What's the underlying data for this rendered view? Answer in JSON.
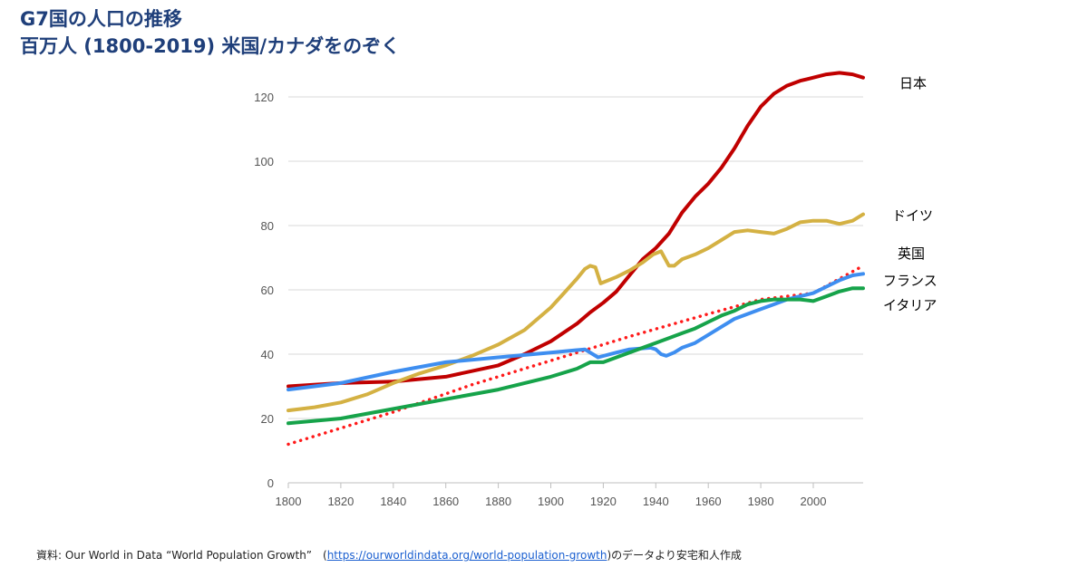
{
  "title": {
    "line1": "G7国の人口の推移",
    "line2": "百万人 (1800-2019) 米国/カナダをのぞく"
  },
  "source": {
    "prefix": "資料: Our World in Data “World Population Growth”　(",
    "link_text": "https://ourworldindata.org/world-population-growth",
    "suffix": ")のデータより安宅和人作成"
  },
  "chart_data": {
    "type": "line",
    "title": "G7国の人口の推移",
    "subtitle": "百万人 (1800-2019) 米国/カナダをのぞく",
    "xlabel": "",
    "ylabel": "",
    "xlim": [
      1800,
      2019
    ],
    "ylim": [
      0,
      120
    ],
    "x_ticks": [
      1800,
      1820,
      1840,
      1860,
      1880,
      1900,
      1920,
      1940,
      1960,
      1980,
      2000
    ],
    "y_ticks": [
      0,
      20,
      40,
      60,
      80,
      100,
      120
    ],
    "grid": "horizontal",
    "legend": "right-end labels",
    "series": [
      {
        "name": "日本",
        "color": "#c00000",
        "points": [
          [
            1800,
            30
          ],
          [
            1820,
            31
          ],
          [
            1840,
            31.5
          ],
          [
            1860,
            33
          ],
          [
            1880,
            36.5
          ],
          [
            1890,
            40
          ],
          [
            1900,
            44
          ],
          [
            1910,
            49.5
          ],
          [
            1915,
            53
          ],
          [
            1920,
            56
          ],
          [
            1925,
            59.5
          ],
          [
            1930,
            64.5
          ],
          [
            1935,
            69.5
          ],
          [
            1940,
            73
          ],
          [
            1945,
            77.5
          ],
          [
            1950,
            84
          ],
          [
            1955,
            89
          ],
          [
            1960,
            93
          ],
          [
            1965,
            98
          ],
          [
            1970,
            104
          ],
          [
            1975,
            111
          ],
          [
            1980,
            117
          ],
          [
            1985,
            121
          ],
          [
            1990,
            123.5
          ],
          [
            1995,
            125
          ],
          [
            2000,
            126
          ],
          [
            2005,
            127
          ],
          [
            2010,
            127.5
          ],
          [
            2015,
            127
          ],
          [
            2019,
            126
          ]
        ]
      },
      {
        "name": "ドイツ",
        "color": "#d4b143",
        "points": [
          [
            1800,
            22.5
          ],
          [
            1810,
            23.5
          ],
          [
            1820,
            25
          ],
          [
            1830,
            27.5
          ],
          [
            1840,
            31
          ],
          [
            1850,
            34
          ],
          [
            1860,
            36.5
          ],
          [
            1870,
            39.5
          ],
          [
            1880,
            43
          ],
          [
            1890,
            47.5
          ],
          [
            1900,
            54.5
          ],
          [
            1905,
            59
          ],
          [
            1910,
            63.5
          ],
          [
            1913,
            66.5
          ],
          [
            1915,
            67.5
          ],
          [
            1917,
            67
          ],
          [
            1919,
            62
          ],
          [
            1925,
            64
          ],
          [
            1930,
            66
          ],
          [
            1935,
            68.5
          ],
          [
            1939,
            71
          ],
          [
            1942,
            72
          ],
          [
            1945,
            67.5
          ],
          [
            1947,
            67.5
          ],
          [
            1950,
            69.5
          ],
          [
            1955,
            71
          ],
          [
            1960,
            73
          ],
          [
            1965,
            75.5
          ],
          [
            1970,
            78
          ],
          [
            1975,
            78.5
          ],
          [
            1980,
            78
          ],
          [
            1985,
            77.5
          ],
          [
            1990,
            79
          ],
          [
            1995,
            81
          ],
          [
            2000,
            81.5
          ],
          [
            2005,
            81.5
          ],
          [
            2010,
            80.5
          ],
          [
            2015,
            81.5
          ],
          [
            2019,
            83.5
          ]
        ]
      },
      {
        "name": "英国",
        "color": "#ff1a1a",
        "dashed": true,
        "points": [
          [
            1800,
            12
          ],
          [
            1840,
            22
          ],
          [
            1870,
            30.5
          ],
          [
            1900,
            38
          ],
          [
            1930,
            45.5
          ],
          [
            1960,
            52.5
          ],
          [
            1980,
            57
          ],
          [
            2000,
            59
          ],
          [
            2019,
            67.5
          ]
        ]
      },
      {
        "name": "フランス",
        "color": "#3e8ef0",
        "points": [
          [
            1800,
            29
          ],
          [
            1820,
            31
          ],
          [
            1840,
            34.5
          ],
          [
            1860,
            37.5
          ],
          [
            1880,
            39
          ],
          [
            1900,
            40.5
          ],
          [
            1913,
            41.5
          ],
          [
            1918,
            39
          ],
          [
            1925,
            40.5
          ],
          [
            1930,
            41.5
          ],
          [
            1938,
            42
          ],
          [
            1940,
            41.5
          ],
          [
            1942,
            40
          ],
          [
            1944,
            39.5
          ],
          [
            1947,
            40.5
          ],
          [
            1950,
            42
          ],
          [
            1955,
            43.5
          ],
          [
            1960,
            46
          ],
          [
            1965,
            48.5
          ],
          [
            1970,
            51
          ],
          [
            1975,
            52.5
          ],
          [
            1980,
            54
          ],
          [
            1985,
            55.5
          ],
          [
            1990,
            57
          ],
          [
            1995,
            58
          ],
          [
            2000,
            59
          ],
          [
            2005,
            61
          ],
          [
            2010,
            63
          ],
          [
            2015,
            64.5
          ],
          [
            2019,
            65
          ]
        ]
      },
      {
        "name": "イタリア",
        "color": "#16a34a",
        "points": [
          [
            1800,
            18.5
          ],
          [
            1820,
            20
          ],
          [
            1840,
            23
          ],
          [
            1860,
            26
          ],
          [
            1880,
            29
          ],
          [
            1900,
            33
          ],
          [
            1910,
            35.5
          ],
          [
            1915,
            37.5
          ],
          [
            1920,
            37.5
          ],
          [
            1930,
            40.5
          ],
          [
            1940,
            43.5
          ],
          [
            1945,
            45
          ],
          [
            1950,
            46.5
          ],
          [
            1955,
            48
          ],
          [
            1960,
            50
          ],
          [
            1965,
            52
          ],
          [
            1970,
            53.5
          ],
          [
            1975,
            55.5
          ],
          [
            1980,
            56.5
          ],
          [
            1985,
            57
          ],
          [
            1990,
            57
          ],
          [
            1995,
            57
          ],
          [
            2000,
            56.5
          ],
          [
            2005,
            58
          ],
          [
            2010,
            59.5
          ],
          [
            2015,
            60.5
          ],
          [
            2019,
            60.5
          ]
        ]
      }
    ]
  }
}
